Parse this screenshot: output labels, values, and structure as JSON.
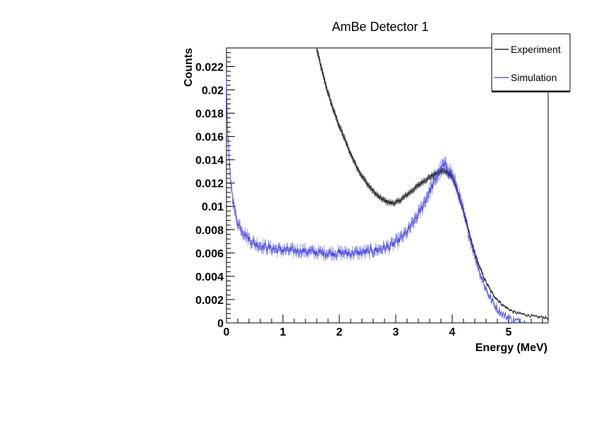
{
  "chart_data": {
    "type": "line",
    "title": "AmBe Detector 1",
    "xlabel": "Energy (MeV)",
    "ylabel": "Counts",
    "xlim": [
      0,
      5.7
    ],
    "ylim": [
      0,
      0.0236
    ],
    "x_major_ticks": [
      0,
      1,
      2,
      3,
      4,
      5
    ],
    "x_tick_labels": [
      "0",
      "1",
      "2",
      "3",
      "4",
      "5"
    ],
    "y_major_ticks": [
      0,
      0.002,
      0.004,
      0.006,
      0.008,
      0.01,
      0.012,
      0.014,
      0.016,
      0.018,
      0.02,
      0.022
    ],
    "y_tick_labels": [
      "0",
      "0.002",
      "0.004",
      "0.006",
      "0.008",
      "0.01",
      "0.012",
      "0.014",
      "0.016",
      "0.018",
      "0.02",
      "0.022"
    ],
    "grid": false,
    "legend_position": "top-right",
    "series": [
      {
        "name": "Experiment",
        "color": "#000000",
        "x": [
          1.6,
          1.7,
          1.8,
          1.9,
          2.0,
          2.1,
          2.2,
          2.3,
          2.4,
          2.5,
          2.6,
          2.7,
          2.8,
          2.9,
          3.0,
          3.1,
          3.2,
          3.3,
          3.4,
          3.5,
          3.6,
          3.7,
          3.8,
          3.9,
          4.0,
          4.1,
          4.2,
          4.3,
          4.4,
          4.5,
          4.6,
          4.7,
          4.8,
          4.9,
          5.0,
          5.1,
          5.2,
          5.3,
          5.4,
          5.5,
          5.6,
          5.7
        ],
        "y": [
          0.0235,
          0.0215,
          0.0197,
          0.0182,
          0.0169,
          0.0157,
          0.0145,
          0.0135,
          0.0126,
          0.0119,
          0.0113,
          0.0108,
          0.0105,
          0.0103,
          0.0103,
          0.0106,
          0.011,
          0.0114,
          0.0118,
          0.0122,
          0.0125,
          0.0128,
          0.013,
          0.013,
          0.0125,
          0.0112,
          0.0095,
          0.0077,
          0.006,
          0.0046,
          0.0035,
          0.0026,
          0.002,
          0.0015,
          0.0012,
          0.0009,
          0.0008,
          0.0007,
          0.0006,
          0.0005,
          0.0005,
          0.0004
        ]
      },
      {
        "name": "Simulation",
        "color": "#3f3fdd",
        "x": [
          0.0,
          0.02,
          0.05,
          0.1,
          0.15,
          0.2,
          0.3,
          0.4,
          0.5,
          0.7,
          0.9,
          1.1,
          1.3,
          1.5,
          1.7,
          1.9,
          2.1,
          2.3,
          2.5,
          2.7,
          2.9,
          3.0,
          3.1,
          3.2,
          3.3,
          3.4,
          3.5,
          3.6,
          3.7,
          3.8,
          3.85,
          3.9,
          4.0,
          4.1,
          4.2,
          4.3,
          4.4,
          4.5,
          4.6,
          4.7,
          4.8,
          4.9,
          5.0,
          5.1,
          5.2,
          5.3
        ],
        "y": [
          0.0205,
          0.0165,
          0.0135,
          0.0112,
          0.0095,
          0.0086,
          0.0078,
          0.0072,
          0.0068,
          0.0065,
          0.0063,
          0.0062,
          0.0062,
          0.0061,
          0.006,
          0.006,
          0.006,
          0.006,
          0.0061,
          0.0063,
          0.0066,
          0.0069,
          0.0073,
          0.0078,
          0.0085,
          0.0093,
          0.0103,
          0.0113,
          0.0123,
          0.0132,
          0.0135,
          0.0134,
          0.0127,
          0.0113,
          0.0095,
          0.0076,
          0.0058,
          0.0042,
          0.0029,
          0.0019,
          0.0012,
          0.0007,
          0.0004,
          0.0002,
          0.0001,
          0.0
        ]
      }
    ]
  }
}
